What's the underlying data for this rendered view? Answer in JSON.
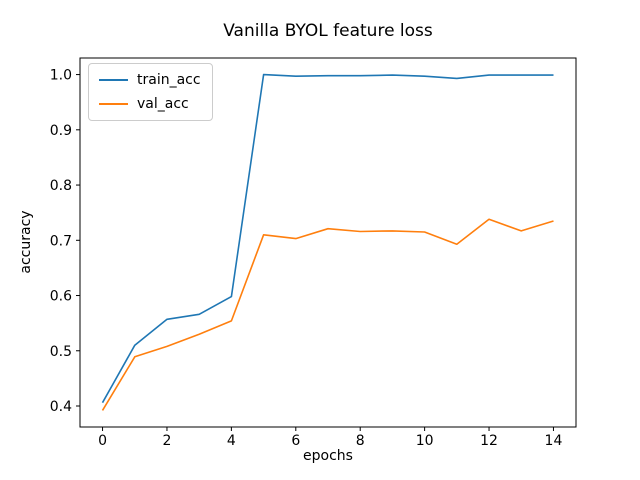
{
  "figure": {
    "background": "#ffffff",
    "text_color": "#000000",
    "frame_color": "#000000"
  },
  "chart_data": {
    "type": "line",
    "title": "Vanilla BYOL feature loss",
    "xlabel": "epochs",
    "ylabel": "accuracy",
    "x": [
      0,
      1,
      2,
      3,
      4,
      5,
      6,
      7,
      8,
      9,
      10,
      11,
      12,
      13,
      14
    ],
    "series": [
      {
        "name": "train_acc",
        "color": "#1f77b4",
        "values": [
          0.406,
          0.51,
          0.557,
          0.566,
          0.598,
          1.0,
          0.997,
          0.998,
          0.998,
          0.999,
          0.997,
          0.993,
          0.999,
          0.999,
          0.999
        ]
      },
      {
        "name": "val_acc",
        "color": "#ff7f0e",
        "values": [
          0.392,
          0.489,
          0.508,
          0.53,
          0.554,
          0.71,
          0.703,
          0.721,
          0.716,
          0.717,
          0.715,
          0.693,
          0.738,
          0.717,
          0.735
        ]
      }
    ],
    "xlim": [
      -0.7,
      14.7
    ],
    "ylim": [
      0.362,
      1.03
    ],
    "xticks": {
      "values": [
        0,
        2,
        4,
        6,
        8,
        10,
        12,
        14
      ],
      "labels": [
        "0",
        "2",
        "4",
        "6",
        "8",
        "10",
        "12",
        "14"
      ]
    },
    "yticks": {
      "values": [
        0.4,
        0.5,
        0.6,
        0.7,
        0.8,
        0.9,
        1.0
      ],
      "labels": [
        "0.4",
        "0.5",
        "0.6",
        "0.7",
        "0.8",
        "0.9",
        "1.0"
      ]
    },
    "grid": false,
    "legend": {
      "position": "upper left",
      "entries": [
        "train_acc",
        "val_acc"
      ]
    }
  }
}
